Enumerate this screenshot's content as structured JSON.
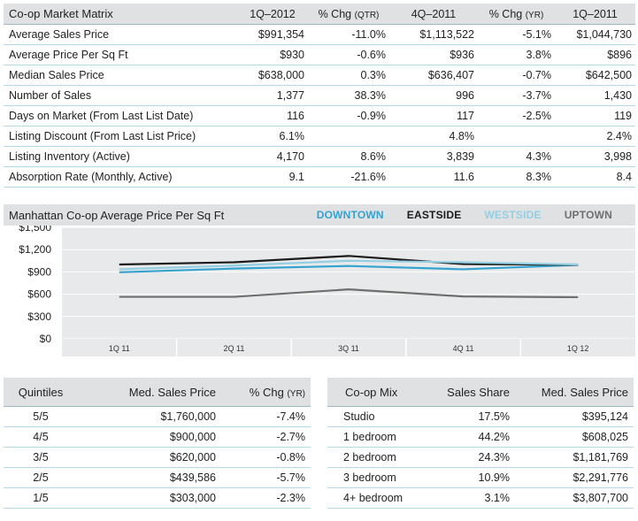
{
  "matrix": {
    "headers": [
      "Co-op  Market Matrix",
      "1Q–2012",
      "% Chg",
      "(QTR)",
      "4Q–2011",
      "% Chg",
      "(YR)",
      "1Q–2011"
    ],
    "rows": [
      [
        "Average Sales Price",
        "$991,354",
        "-11.0%",
        "$1,113,522",
        "-5.1%",
        "$1,044,730"
      ],
      [
        "Average Price Per Sq Ft",
        "$930",
        "-0.6%",
        "$936",
        "3.8%",
        "$896"
      ],
      [
        "Median Sales Price",
        "$638,000",
        "0.3%",
        "$636,407",
        "-0.7%",
        "$642,500"
      ],
      [
        "Number of Sales",
        "1,377",
        "38.3%",
        "996",
        "-3.7%",
        "1,430"
      ],
      [
        "Days on Market (From Last List Date)",
        "116",
        "-0.9%",
        "117",
        "-2.5%",
        "119"
      ],
      [
        "Listing Discount (From Last List Price)",
        "6.1%",
        "",
        "4.8%",
        "",
        "2.4%"
      ],
      [
        "Listing Inventory (Active)",
        "4,170",
        "8.6%",
        "3,839",
        "4.3%",
        "3,998"
      ],
      [
        "Absorption Rate (Monthly, Active)",
        "9.1",
        "-21.6%",
        "11.6",
        "8.3%",
        "8.4"
      ]
    ]
  },
  "chart_data": {
    "type": "line",
    "title": "Manhattan Co-op  Average Price Per Sq Ft",
    "categories": [
      "1Q 11",
      "2Q 11",
      "3Q 11",
      "4Q 11",
      "1Q 12"
    ],
    "y_ticks": [
      "$1,500",
      "$1,200",
      "$900",
      "$600",
      "$300",
      "$0"
    ],
    "ylim": [
      0,
      1500
    ],
    "legend_placement": "top",
    "series": [
      {
        "name": "DOWNTOWN",
        "color": "#34a3d0",
        "values": [
          895,
          945,
          980,
          935,
          995
        ]
      },
      {
        "name": "EASTSIDE",
        "color": "#1b1b1b",
        "values": [
          1000,
          1030,
          1115,
          1005,
          995
        ]
      },
      {
        "name": "WESTSIDE",
        "color": "#93cfe3",
        "values": [
          935,
          985,
          1050,
          1030,
          1000
        ]
      },
      {
        "name": "UPTOWN",
        "color": "#6f6f6f",
        "values": [
          565,
          565,
          665,
          570,
          560
        ]
      }
    ]
  },
  "quintiles": {
    "headers": [
      "Quintiles",
      "Med. Sales Price",
      "% Chg",
      "(YR)"
    ],
    "rows": [
      [
        "5/5",
        "$1,760,000",
        "-7.4%"
      ],
      [
        "4/5",
        "$900,000",
        "-2.7%"
      ],
      [
        "3/5",
        "$620,000",
        "-0.8%"
      ],
      [
        "2/5",
        "$439,586",
        "-5.7%"
      ],
      [
        "1/5",
        "$303,000",
        "-2.3%"
      ]
    ]
  },
  "mix": {
    "headers": [
      "Co-op Mix",
      "Sales Share",
      "Med. Sales Price"
    ],
    "rows": [
      [
        "Studio",
        "17.5%",
        "$395,124"
      ],
      [
        "1 bedroom",
        "44.2%",
        "$608,025"
      ],
      [
        "2 bedroom",
        "24.3%",
        "$1,181,769"
      ],
      [
        "3 bedroom",
        "10.9%",
        "$2,291,776"
      ],
      [
        "4+ bedroom",
        "3.1%",
        "$3,807,700"
      ]
    ]
  }
}
